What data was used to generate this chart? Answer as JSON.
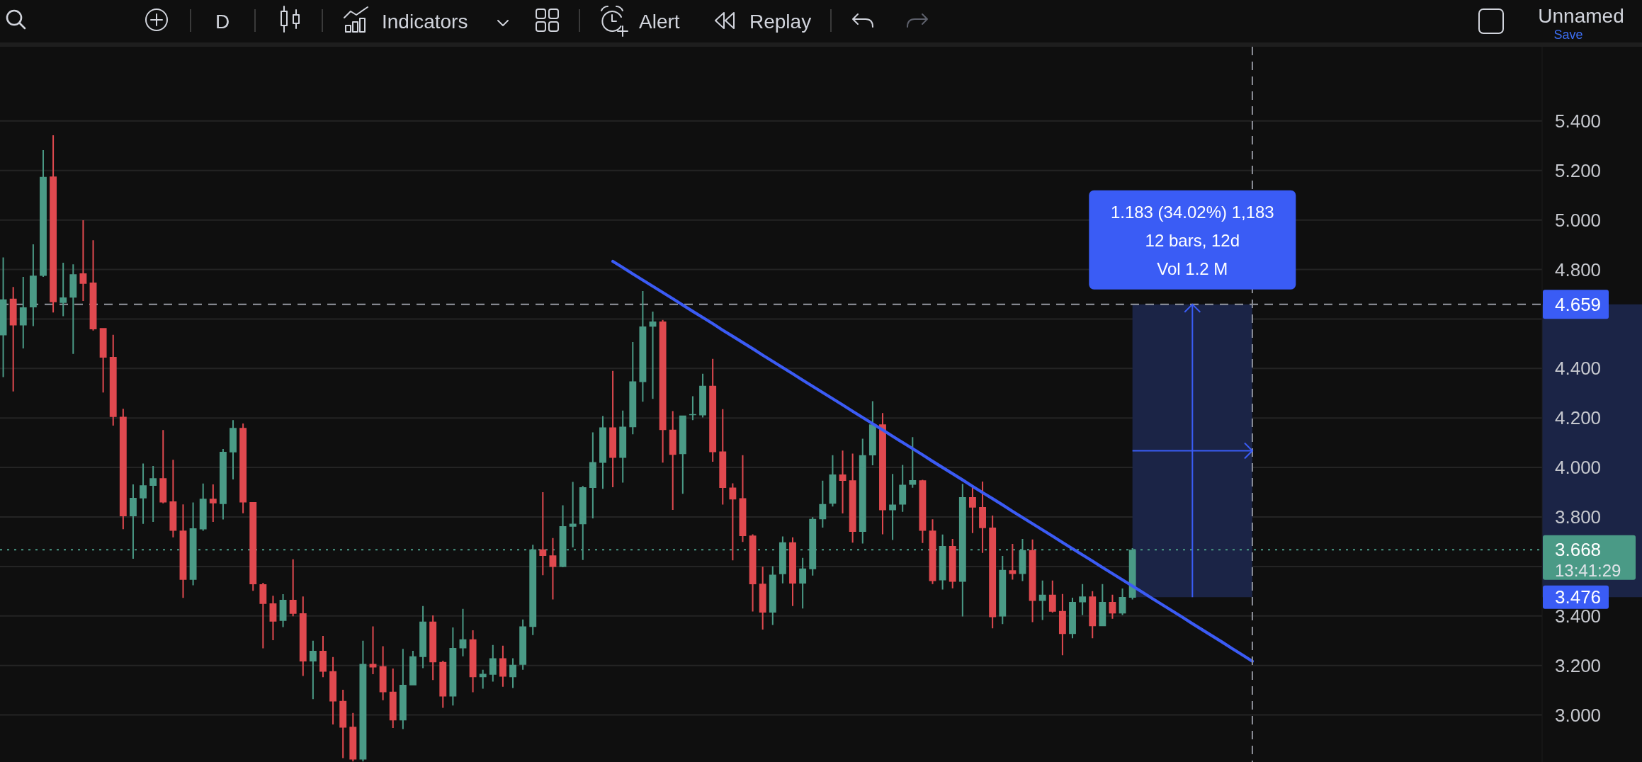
{
  "chart_data": {
    "type": "candlestick",
    "categories": [
      null,
      null,
      null,
      null,
      null,
      null,
      null,
      null,
      null,
      null,
      null,
      null,
      null,
      null,
      null,
      null,
      null,
      null,
      null,
      null,
      null,
      null,
      null,
      null,
      null,
      null,
      null,
      null,
      null,
      null,
      null,
      null,
      null,
      null,
      null,
      null,
      null,
      null,
      null,
      null,
      null,
      null,
      null,
      null,
      null,
      null,
      null,
      null,
      null,
      null,
      null,
      null,
      null,
      null,
      null,
      null,
      null,
      null,
      null,
      null,
      null,
      null,
      null,
      null,
      null,
      null,
      null,
      null,
      null,
      null,
      null,
      null,
      null,
      null,
      null,
      null,
      null,
      null,
      null,
      null,
      null,
      null,
      null,
      null,
      null,
      null,
      null,
      null,
      null,
      null,
      null,
      null,
      null,
      null,
      null,
      null,
      null,
      null,
      null,
      null,
      null,
      null,
      null,
      null,
      null,
      null,
      null,
      null,
      null,
      null,
      null,
      null,
      null,
      null,
      null,
      null,
      null,
      null,
      null,
      null,
      null,
      null,
      null,
      null,
      null,
      null,
      null,
      null,
      null,
      null,
      null,
      null,
      null,
      null,
      null,
      null,
      null,
      null,
      null,
      null,
      null,
      null,
      null,
      null,
      null,
      null,
      null,
      null,
      null,
      null,
      null,
      null,
      null,
      null
    ],
    "ohlc": [
      [
        4.534,
        4.849,
        4.365,
        4.679
      ],
      [
        4.682,
        4.729,
        4.307,
        4.574
      ],
      [
        4.574,
        4.77,
        4.481,
        4.647
      ],
      [
        4.647,
        4.902,
        4.571,
        4.775
      ],
      [
        4.774,
        5.282,
        4.77,
        5.174
      ],
      [
        5.176,
        5.342,
        4.626,
        4.668
      ],
      [
        4.665,
        4.827,
        4.611,
        4.687
      ],
      [
        4.686,
        4.821,
        4.459,
        4.781
      ],
      [
        4.784,
        4.999,
        4.673,
        4.742
      ],
      [
        4.747,
        4.918,
        4.553,
        4.558
      ],
      [
        4.563,
        4.563,
        4.303,
        4.444
      ],
      [
        4.447,
        4.536,
        4.169,
        4.204
      ],
      [
        4.205,
        4.237,
        3.751,
        3.803
      ],
      [
        3.803,
        3.932,
        3.631,
        3.877
      ],
      [
        3.875,
        4.016,
        3.772,
        3.928
      ],
      [
        3.926,
        4.006,
        3.78,
        3.957
      ],
      [
        3.957,
        4.151,
        3.855,
        3.859
      ],
      [
        3.863,
        4.031,
        3.718,
        3.744
      ],
      [
        3.745,
        3.851,
        3.473,
        3.546
      ],
      [
        3.546,
        3.859,
        3.524,
        3.754
      ],
      [
        3.75,
        3.935,
        3.744,
        3.874
      ],
      [
        3.874,
        3.932,
        3.78,
        3.855
      ],
      [
        3.852,
        4.075,
        3.79,
        4.063
      ],
      [
        4.061,
        4.191,
        3.952,
        4.16
      ],
      [
        4.16,
        4.178,
        3.815,
        3.859
      ],
      [
        3.86,
        3.86,
        3.502,
        3.528
      ],
      [
        3.528,
        3.534,
        3.269,
        3.449
      ],
      [
        3.451,
        3.482,
        3.302,
        3.377
      ],
      [
        3.38,
        3.488,
        3.355,
        3.465
      ],
      [
        3.465,
        3.629,
        3.399,
        3.409
      ],
      [
        3.411,
        3.479,
        3.158,
        3.216
      ],
      [
        3.216,
        3.3,
        3.064,
        3.259
      ],
      [
        3.259,
        3.319,
        3.153,
        3.175
      ],
      [
        3.177,
        3.234,
        2.962,
        3.055
      ],
      [
        3.057,
        3.102,
        2.826,
        2.949
      ],
      [
        2.952,
        3.008,
        2.812,
        2.82
      ],
      [
        2.82,
        3.3,
        2.812,
        3.206
      ],
      [
        3.206,
        3.358,
        3.165,
        3.192
      ],
      [
        3.197,
        3.278,
        3.06,
        3.092
      ],
      [
        3.094,
        3.188,
        2.947,
        2.978
      ],
      [
        2.978,
        3.267,
        2.943,
        3.122
      ],
      [
        3.12,
        3.259,
        3.12,
        3.237
      ],
      [
        3.234,
        3.44,
        3.189,
        3.377
      ],
      [
        3.377,
        3.402,
        3.141,
        3.213
      ],
      [
        3.214,
        3.219,
        3.029,
        3.075
      ],
      [
        3.075,
        3.354,
        3.038,
        3.271
      ],
      [
        3.269,
        3.429,
        3.237,
        3.306
      ],
      [
        3.306,
        3.342,
        3.092,
        3.153
      ],
      [
        3.153,
        3.183,
        3.106,
        3.166
      ],
      [
        3.163,
        3.283,
        3.135,
        3.229
      ],
      [
        3.229,
        3.28,
        3.114,
        3.155
      ],
      [
        3.153,
        3.229,
        3.109,
        3.203
      ],
      [
        3.203,
        3.386,
        3.183,
        3.358
      ],
      [
        3.356,
        3.688,
        3.323,
        3.669
      ],
      [
        3.669,
        3.9,
        3.565,
        3.643
      ],
      [
        3.645,
        3.715,
        3.467,
        3.598
      ],
      [
        3.598,
        3.847,
        3.597,
        3.763
      ],
      [
        3.761,
        3.942,
        3.677,
        3.773
      ],
      [
        3.771,
        3.925,
        3.626,
        3.92
      ],
      [
        3.917,
        4.142,
        3.794,
        4.022
      ],
      [
        4.019,
        4.208,
        3.914,
        4.162
      ],
      [
        4.162,
        4.39,
        3.92,
        4.039
      ],
      [
        4.039,
        4.23,
        3.939,
        4.165
      ],
      [
        4.163,
        4.507,
        4.134,
        4.348
      ],
      [
        4.345,
        4.713,
        4.266,
        4.57
      ],
      [
        4.569,
        4.63,
        4.277,
        4.59
      ],
      [
        4.59,
        4.596,
        4.02,
        4.151
      ],
      [
        4.153,
        4.228,
        3.829,
        4.051
      ],
      [
        4.054,
        4.21,
        3.894,
        4.21
      ],
      [
        4.212,
        4.288,
        4.191,
        4.216
      ],
      [
        4.211,
        4.379,
        4.202,
        4.33
      ],
      [
        4.33,
        4.439,
        4.023,
        4.062
      ],
      [
        4.065,
        4.236,
        3.85,
        3.917
      ],
      [
        3.919,
        3.936,
        3.625,
        3.871
      ],
      [
        3.876,
        4.05,
        3.699,
        3.723
      ],
      [
        3.725,
        3.73,
        3.418,
        3.528
      ],
      [
        3.53,
        3.599,
        3.345,
        3.414
      ],
      [
        3.414,
        3.601,
        3.364,
        3.567
      ],
      [
        3.569,
        3.721,
        3.532,
        3.698
      ],
      [
        3.698,
        3.718,
        3.44,
        3.531
      ],
      [
        3.531,
        3.635,
        3.43,
        3.592
      ],
      [
        3.589,
        3.799,
        3.563,
        3.792
      ],
      [
        3.791,
        3.947,
        3.757,
        3.852
      ],
      [
        3.854,
        4.05,
        3.842,
        3.972
      ],
      [
        3.972,
        4.068,
        3.814,
        3.946
      ],
      [
        3.948,
        4.056,
        3.696,
        3.74
      ],
      [
        3.74,
        4.116,
        3.693,
        4.05
      ],
      [
        4.049,
        4.268,
        4.009,
        4.174
      ],
      [
        4.174,
        4.22,
        3.73,
        3.827
      ],
      [
        3.827,
        3.974,
        3.707,
        3.85
      ],
      [
        3.85,
        4.01,
        3.821,
        3.93
      ],
      [
        3.93,
        4.123,
        3.918,
        3.949
      ],
      [
        3.948,
        3.95,
        3.695,
        3.744
      ],
      [
        3.745,
        3.791,
        3.529,
        3.541
      ],
      [
        3.544,
        3.729,
        3.507,
        3.683
      ],
      [
        3.683,
        3.711,
        3.512,
        3.538
      ],
      [
        3.538,
        3.934,
        3.398,
        3.88
      ],
      [
        3.88,
        3.921,
        3.735,
        3.838
      ],
      [
        3.84,
        3.943,
        3.655,
        3.755
      ],
      [
        3.757,
        3.806,
        3.35,
        3.395
      ],
      [
        3.398,
        3.643,
        3.367,
        3.586
      ],
      [
        3.585,
        3.691,
        3.547,
        3.57
      ],
      [
        3.57,
        3.711,
        3.541,
        3.666
      ],
      [
        3.666,
        3.709,
        3.375,
        3.461
      ],
      [
        3.461,
        3.543,
        3.384,
        3.486
      ],
      [
        3.486,
        3.543,
        3.414,
        3.417
      ],
      [
        3.42,
        3.489,
        3.241,
        3.327
      ],
      [
        3.327,
        3.474,
        3.31,
        3.457
      ],
      [
        3.455,
        3.529,
        3.404,
        3.479
      ],
      [
        3.479,
        3.5,
        3.31,
        3.359
      ],
      [
        3.359,
        3.529,
        3.359,
        3.457
      ],
      [
        3.457,
        3.486,
        3.389,
        3.41
      ],
      [
        3.41,
        3.511,
        3.404,
        3.477
      ],
      [
        3.474,
        3.674,
        3.467,
        3.668
      ],
      null,
      null,
      null,
      null,
      null,
      null,
      null,
      null,
      null,
      null,
      null,
      null,
      null,
      null,
      null,
      null,
      null,
      null,
      null,
      null,
      null,
      null,
      null,
      null,
      null,
      null,
      null,
      null,
      null,
      null,
      null,
      null,
      null,
      null,
      null,
      null,
      null,
      null,
      null,
      null
    ],
    "colors": [
      "#4a9a86",
      "#e0494f",
      "#4a9a86",
      "#4a9a86",
      "#4a9a86",
      "#e0494f",
      "#4a9a86",
      "#4a9a86",
      "#e0494f",
      "#e0494f",
      "#e0494f",
      "#e0494f",
      "#e0494f",
      "#4a9a86",
      "#4a9a86",
      "#4a9a86",
      "#e0494f",
      "#e0494f",
      "#e0494f",
      "#4a9a86",
      "#4a9a86",
      "#e0494f",
      "#4a9a86",
      "#4a9a86",
      "#e0494f",
      "#e0494f",
      "#e0494f",
      "#e0494f",
      "#4a9a86",
      "#e0494f",
      "#e0494f",
      "#4a9a86",
      "#e0494f",
      "#e0494f",
      "#e0494f",
      "#e0494f",
      "#4a9a86",
      "#e0494f",
      "#e0494f",
      "#e0494f",
      "#4a9a86",
      "#4a9a86",
      "#4a9a86",
      "#e0494f",
      "#e0494f",
      "#4a9a86",
      "#4a9a86",
      "#e0494f",
      "#4a9a86",
      "#4a9a86",
      "#e0494f",
      "#4a9a86",
      "#4a9a86",
      "#4a9a86",
      "#e0494f",
      "#e0494f",
      "#4a9a86",
      "#4a9a86",
      "#4a9a86",
      "#4a9a86",
      "#4a9a86",
      "#e0494f",
      "#4a9a86",
      "#4a9a86",
      "#4a9a86",
      "#4a9a86",
      "#e0494f",
      "#e0494f",
      "#4a9a86",
      "#4a9a86",
      "#4a9a86",
      "#e0494f",
      "#e0494f",
      "#e0494f",
      "#e0494f",
      "#e0494f",
      "#e0494f",
      "#4a9a86",
      "#4a9a86",
      "#e0494f",
      "#4a9a86",
      "#4a9a86",
      "#4a9a86",
      "#4a9a86",
      "#e0494f",
      "#e0494f",
      "#4a9a86",
      "#4a9a86",
      "#e0494f",
      "#4a9a86",
      "#4a9a86",
      "#4a9a86",
      "#e0494f",
      "#e0494f",
      "#4a9a86",
      "#e0494f",
      "#4a9a86",
      "#e0494f",
      "#e0494f",
      "#e0494f",
      "#4a9a86",
      "#e0494f",
      "#4a9a86",
      "#e0494f",
      "#4a9a86",
      "#e0494f",
      "#e0494f",
      "#4a9a86",
      "#4a9a86",
      "#e0494f",
      "#4a9a86",
      "#e0494f",
      "#4a9a86",
      "#4a9a86",
      null,
      null,
      null,
      null,
      null,
      null,
      null,
      null,
      null,
      null,
      null,
      null,
      null,
      null,
      null,
      null,
      null,
      null,
      null,
      null,
      null,
      null,
      null,
      null,
      null,
      null,
      null,
      null,
      null,
      null,
      null,
      null,
      null,
      null,
      null,
      null,
      null,
      null,
      null,
      null
    ],
    "series": [
      {
        "type": "line",
        "color": "#3b5bf5",
        "values": [
          null,
          null,
          null,
          null,
          null,
          null,
          null,
          null,
          null,
          null,
          null,
          null,
          null,
          null,
          null,
          null,
          null,
          null,
          null,
          null,
          null,
          null,
          null,
          null,
          null,
          null,
          null,
          null,
          null,
          null,
          null,
          null,
          null,
          null,
          null,
          null,
          null,
          null,
          null,
          null,
          null,
          null,
          null,
          null,
          null,
          null,
          null,
          null,
          null,
          null,
          null,
          null,
          null,
          null,
          null,
          null,
          null,
          null,
          null,
          null,
          null,
          4.833,
          4.808,
          4.782,
          4.757,
          4.732,
          4.707,
          4.682,
          4.656,
          4.631,
          4.606,
          4.581,
          4.555,
          4.53,
          4.505,
          4.48,
          4.454,
          4.429,
          4.404,
          4.379,
          4.353,
          4.328,
          4.303,
          4.278,
          4.253,
          4.227,
          4.202,
          4.177,
          4.152,
          4.126,
          4.101,
          4.076,
          4.051,
          4.025,
          4.0,
          3.975,
          3.95,
          3.924,
          3.899,
          3.874,
          3.849,
          3.823,
          3.798,
          3.773,
          3.748,
          3.723,
          3.697,
          3.672,
          3.647,
          3.622,
          3.596,
          3.571,
          3.546,
          3.521,
          3.496,
          3.47,
          3.445,
          3.42,
          3.395,
          3.369,
          3.344,
          3.319,
          3.294,
          3.268,
          3.243,
          3.217,
          null,
          null,
          null,
          null,
          null,
          null,
          null,
          null,
          null,
          null,
          null,
          null,
          null,
          null,
          null,
          null,
          null,
          null,
          null,
          null,
          null,
          null,
          null,
          null,
          null,
          null,
          null,
          null
        ]
      }
    ],
    "ylim": [
      2.81,
      5.7
    ],
    "yticks": [
      {
        "value": 3,
        "label": "3.000"
      },
      {
        "value": 3.2,
        "label": "3.200"
      },
      {
        "value": 3.4,
        "label": "3.400"
      },
      {
        "value": 3.6,
        "label": null
      },
      {
        "value": 3.8,
        "label": "3.800"
      },
      {
        "value": 4,
        "label": "4.000"
      },
      {
        "value": 4.2,
        "label": "4.200"
      },
      {
        "value": 4.4,
        "label": "4.400"
      },
      {
        "value": 4.6,
        "label": null
      },
      {
        "value": 4.8,
        "label": "4.800"
      },
      {
        "value": 5,
        "label": "5.000"
      },
      {
        "value": 5.2,
        "label": "5.200"
      },
      {
        "value": 5.4,
        "label": "5.400"
      }
    ],
    "grid": "y",
    "tick_labels": "y",
    "ref_lines": [
      {
        "axis": "y",
        "value": 4.659,
        "label": "4.659",
        "color": "#9598a1",
        "line_style": "dashed"
      },
      {
        "axis": "y",
        "value": 3.668,
        "label": "3.668",
        "color": "#4a9a86",
        "line_style": "dotted"
      }
    ],
    "bands": [
      {
        "axis": "y",
        "from": 3.476,
        "to": 4.659,
        "color": "#1b2446"
      }
    ],
    "annotations": [
      "D",
      "Indicators",
      "Alert",
      "Replay",
      "Unnamed",
      "Save",
      "1.183 (34.02%) 1,183",
      "12 bars, 12d",
      "Vol 1.2 M",
      "13:41:29",
      "3.476"
    ]
  }
}
